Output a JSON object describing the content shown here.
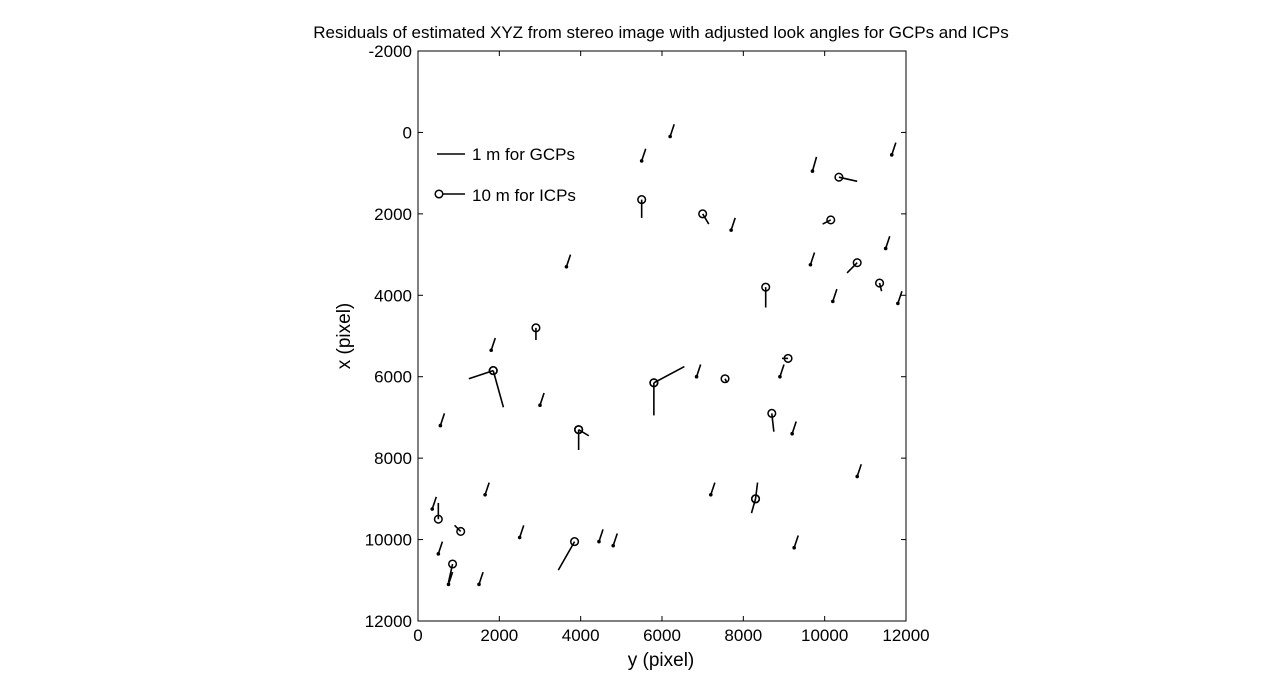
{
  "chart_data": {
    "type": "scatter",
    "title": "Residuals of estimated XYZ from stereo image with adjusted look angles for GCPs and ICPs",
    "xlabel": "y (pixel)",
    "ylabel": "x (pixel)",
    "xlim": [
      0,
      12000
    ],
    "ylim": [
      -2000,
      12000
    ],
    "y_axis_reversed": true,
    "x_ticks": [
      "0",
      "2000",
      "4000",
      "6000",
      "8000",
      "10000",
      "12000"
    ],
    "y_ticks": [
      "-2000",
      "0",
      "2000",
      "4000",
      "6000",
      "8000",
      "10000",
      "12000"
    ],
    "grid": false,
    "legend_position": "top-left",
    "legend": [
      {
        "label": "1 m for GCPs",
        "marker": "none"
      },
      {
        "label": "10 m for ICPs",
        "marker": "circle"
      }
    ],
    "series": [
      {
        "name": "1 m for GCPs",
        "marker": "dot",
        "points": [
          [
            6200,
            100,
            6300,
            -200
          ],
          [
            5500,
            700,
            5600,
            400
          ],
          [
            9700,
            950,
            9800,
            600
          ],
          [
            11650,
            550,
            11750,
            250
          ],
          [
            7700,
            2400,
            7800,
            2100
          ],
          [
            11500,
            2850,
            11600,
            2550
          ],
          [
            3650,
            3300,
            3750,
            3000
          ],
          [
            9650,
            3250,
            9750,
            2950
          ],
          [
            10200,
            4150,
            10300,
            3850
          ],
          [
            11800,
            4200,
            11900,
            3900
          ],
          [
            1800,
            5350,
            1900,
            5050
          ],
          [
            6850,
            6000,
            6950,
            5700
          ],
          [
            8900,
            6000,
            9000,
            5700
          ],
          [
            3000,
            6700,
            3100,
            6400
          ],
          [
            550,
            7200,
            650,
            6900
          ],
          [
            9200,
            7400,
            9300,
            7100
          ],
          [
            10800,
            8450,
            10900,
            8150
          ],
          [
            1650,
            8900,
            1750,
            8600
          ],
          [
            7200,
            8900,
            7300,
            8600
          ],
          [
            350,
            9250,
            450,
            8950
          ],
          [
            2500,
            9950,
            2600,
            9650
          ],
          [
            4450,
            10050,
            4550,
            9750
          ],
          [
            4800,
            10150,
            4900,
            9850
          ],
          [
            9250,
            10200,
            9350,
            9900
          ],
          [
            500,
            10350,
            600,
            10050
          ],
          [
            750,
            11100,
            850,
            10800
          ],
          [
            1500,
            11100,
            1600,
            10800
          ]
        ]
      },
      {
        "name": "10 m for ICPs",
        "marker": "circle",
        "points": [
          [
            10350,
            1100,
            10800,
            1200
          ],
          [
            5500,
            1650,
            5500,
            2100
          ],
          [
            7000,
            2000,
            7150,
            2250
          ],
          [
            10150,
            2150,
            9950,
            2250
          ],
          [
            10800,
            3200,
            10550,
            3450
          ],
          [
            8550,
            3800,
            8550,
            4300
          ],
          [
            11350,
            3700,
            11400,
            3900
          ],
          [
            2900,
            4800,
            2900,
            5100
          ],
          [
            9100,
            5550,
            8950,
            5550
          ],
          [
            1850,
            5850,
            1250,
            6050
          ],
          [
            1850,
            5850,
            2100,
            6750
          ],
          [
            5800,
            6150,
            6550,
            5750
          ],
          [
            5800,
            6150,
            5800,
            6950
          ],
          [
            7550,
            6050,
            7600,
            6150
          ],
          [
            8700,
            6900,
            8750,
            7350
          ],
          [
            3950,
            7300,
            4200,
            7450
          ],
          [
            3950,
            7300,
            3950,
            7800
          ],
          [
            8300,
            9000,
            8350,
            8600
          ],
          [
            8300,
            9000,
            8200,
            9350
          ],
          [
            500,
            9500,
            500,
            9100
          ],
          [
            1050,
            9800,
            900,
            9650
          ],
          [
            3850,
            10050,
            3450,
            10750
          ],
          [
            850,
            10600,
            750,
            11050
          ]
        ]
      }
    ]
  }
}
